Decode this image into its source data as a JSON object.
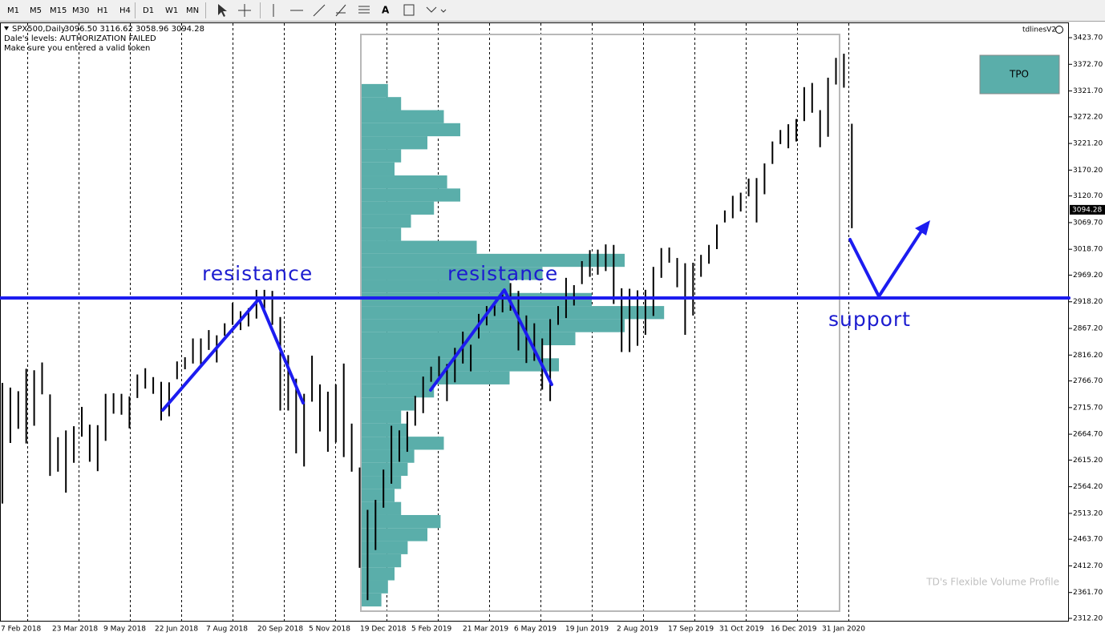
{
  "toolbar": {
    "timeframes": [
      "M1",
      "M5",
      "M15",
      "M30",
      "H1",
      "H4",
      "D1",
      "W1",
      "MN"
    ],
    "text_tool": "A"
  },
  "header": {
    "symbol": "SPX500,Daily",
    "ohlc": "3096.50 3116.62 3058.96 3094.28",
    "status": "Dale's levels: AUTHORIZATION FAILED",
    "hint": "Make sure you entered a valid token",
    "indicator": "tdlinesV2"
  },
  "tpo_button": "TPO",
  "watermark": "TD's Flexible Volume Profile",
  "annotations": [
    "resistance",
    "resistance",
    "support"
  ],
  "chart_data": {
    "type": "range-bar",
    "color": "#000000",
    "high": [
      2763,
      2754,
      2747,
      2790,
      2787,
      2802,
      2741,
      2659,
      2672,
      2680,
      2717,
      2683,
      2682,
      2742,
      2743,
      2742,
      2737,
      2779,
      2791,
      2774,
      2765,
      2764,
      2804,
      2812,
      2848,
      2848,
      2864,
      2854,
      2877,
      2916,
      2900,
      2906,
      2941,
      2941,
      2939,
      2889,
      2816,
      2771,
      2742,
      2815,
      2760,
      2746,
      2760,
      2800,
      2685,
      2601,
      2520,
      2539,
      2597,
      2681,
      2672,
      2708,
      2738,
      2775,
      2794,
      2814,
      2799,
      2830,
      2861,
      2836,
      2895,
      2910,
      2918,
      2940,
      2954,
      2939,
      2892,
      2877,
      2848,
      2885,
      2910,
      2964,
      2950,
      2996,
      3017,
      3018,
      3028,
      3027,
      2944,
      2943,
      2940,
      2941,
      2985,
      3021,
      3022,
      3002,
      2992,
      2993,
      3008,
      3027,
      3066,
      3093,
      3121,
      3127,
      3154,
      3155,
      3183,
      3225,
      3247,
      3258,
      3268,
      3329,
      3337,
      3285,
      3347,
      3385,
      3393,
      3259
    ],
    "low": [
      2532,
      2648,
      2675,
      2647,
      2681,
      2741,
      2585,
      2593,
      2553,
      2610,
      2660,
      2612,
      2594,
      2652,
      2704,
      2702,
      2676,
      2734,
      2752,
      2742,
      2691,
      2699,
      2770,
      2789,
      2800,
      2795,
      2826,
      2802,
      2853,
      2874,
      2864,
      2871,
      2886,
      2905,
      2874,
      2710,
      2710,
      2628,
      2603,
      2727,
      2670,
      2631,
      2649,
      2621,
      2593,
      2409,
      2347,
      2443,
      2524,
      2570,
      2612,
      2631,
      2681,
      2705,
      2765,
      2775,
      2728,
      2764,
      2800,
      2785,
      2848,
      2873,
      2891,
      2898,
      2901,
      2825,
      2801,
      2805,
      2750,
      2728,
      2874,
      2887,
      2911,
      2952,
      2966,
      2970,
      2977,
      2914,
      2822,
      2822,
      2834,
      2855,
      2891,
      2964,
      2993,
      2946,
      2855,
      2892,
      2966,
      2991,
      3019,
      3070,
      3078,
      3091,
      3120,
      3070,
      3124,
      3182,
      3220,
      3212,
      3225,
      3264,
      3280,
      3214,
      3234,
      3334,
      3328,
      3059
    ],
    "ylim": [
      2307.6,
      3449.8
    ],
    "yticks": [
      {
        "value": 3423.7,
        "label": "3423.70"
      },
      {
        "value": 3372.7,
        "label": "3372.70"
      },
      {
        "value": 3321.7,
        "label": "3321.70"
      },
      {
        "value": 3272.2,
        "label": "3272.20"
      },
      {
        "value": 3221.2,
        "label": "3221.20"
      },
      {
        "value": 3170.2,
        "label": "3170.20"
      },
      {
        "value": 3120.7,
        "label": "3120.70"
      },
      {
        "value": 3069.7,
        "label": "3069.70"
      },
      {
        "value": 3018.7,
        "label": "3018.70"
      },
      {
        "value": 2969.2,
        "label": "2969.20"
      },
      {
        "value": 2918.2,
        "label": "2918.20"
      },
      {
        "value": 2867.2,
        "label": "2867.20"
      },
      {
        "value": 2816.2,
        "label": "2816.20"
      },
      {
        "value": 2766.7,
        "label": "2766.70"
      },
      {
        "value": 2715.7,
        "label": "2715.70"
      },
      {
        "value": 2664.7,
        "label": "2664.70"
      },
      {
        "value": 2615.2,
        "label": "2615.20"
      },
      {
        "value": 2564.2,
        "label": "2564.20"
      },
      {
        "value": 2513.2,
        "label": "2513.20"
      },
      {
        "value": 2463.7,
        "label": "2463.70"
      },
      {
        "value": 2412.7,
        "label": "2412.70"
      },
      {
        "value": 2361.7,
        "label": "2361.70"
      },
      {
        "value": 2312.2,
        "label": "2312.20"
      }
    ],
    "x_labels": [
      "7 Feb 2018",
      "23 Mar 2018",
      "9 May 2018",
      "22 Jun 2018",
      "7 Aug 2018",
      "20 Sep 2018",
      "5 Nov 2018",
      "19 Dec 2018",
      "5 Feb 2019",
      "21 Mar 2019",
      "6 May 2019",
      "19 Jun 2019",
      "2 Aug 2019",
      "17 Sep 2019",
      "31 Oct 2019",
      "16 Dec 2019",
      "31 Jan 2020"
    ],
    "last_price": 3094.28,
    "profile": {
      "color": "#5aaeaa",
      "bins": [
        2335,
        2360,
        2385,
        2410,
        2435,
        2460,
        2485,
        2510,
        2535,
        2560,
        2585,
        2610,
        2635,
        2660,
        2685,
        2710,
        2735,
        2760,
        2785,
        2810,
        2835,
        2860,
        2885,
        2910,
        2935,
        2960,
        2985,
        3010,
        3035,
        3060,
        3085,
        3110,
        3135,
        3160,
        3185,
        3210,
        3235,
        3260,
        3285,
        3310,
        3335
      ],
      "values": [
        6,
        8,
        10,
        12,
        14,
        20,
        24,
        12,
        10,
        12,
        14,
        16,
        25,
        14,
        12,
        16,
        22,
        45,
        60,
        55,
        65,
        80,
        92,
        70,
        45,
        55,
        80,
        35,
        12,
        15,
        22,
        30,
        26,
        10,
        12,
        20,
        30,
        25,
        12,
        8
      ]
    }
  }
}
